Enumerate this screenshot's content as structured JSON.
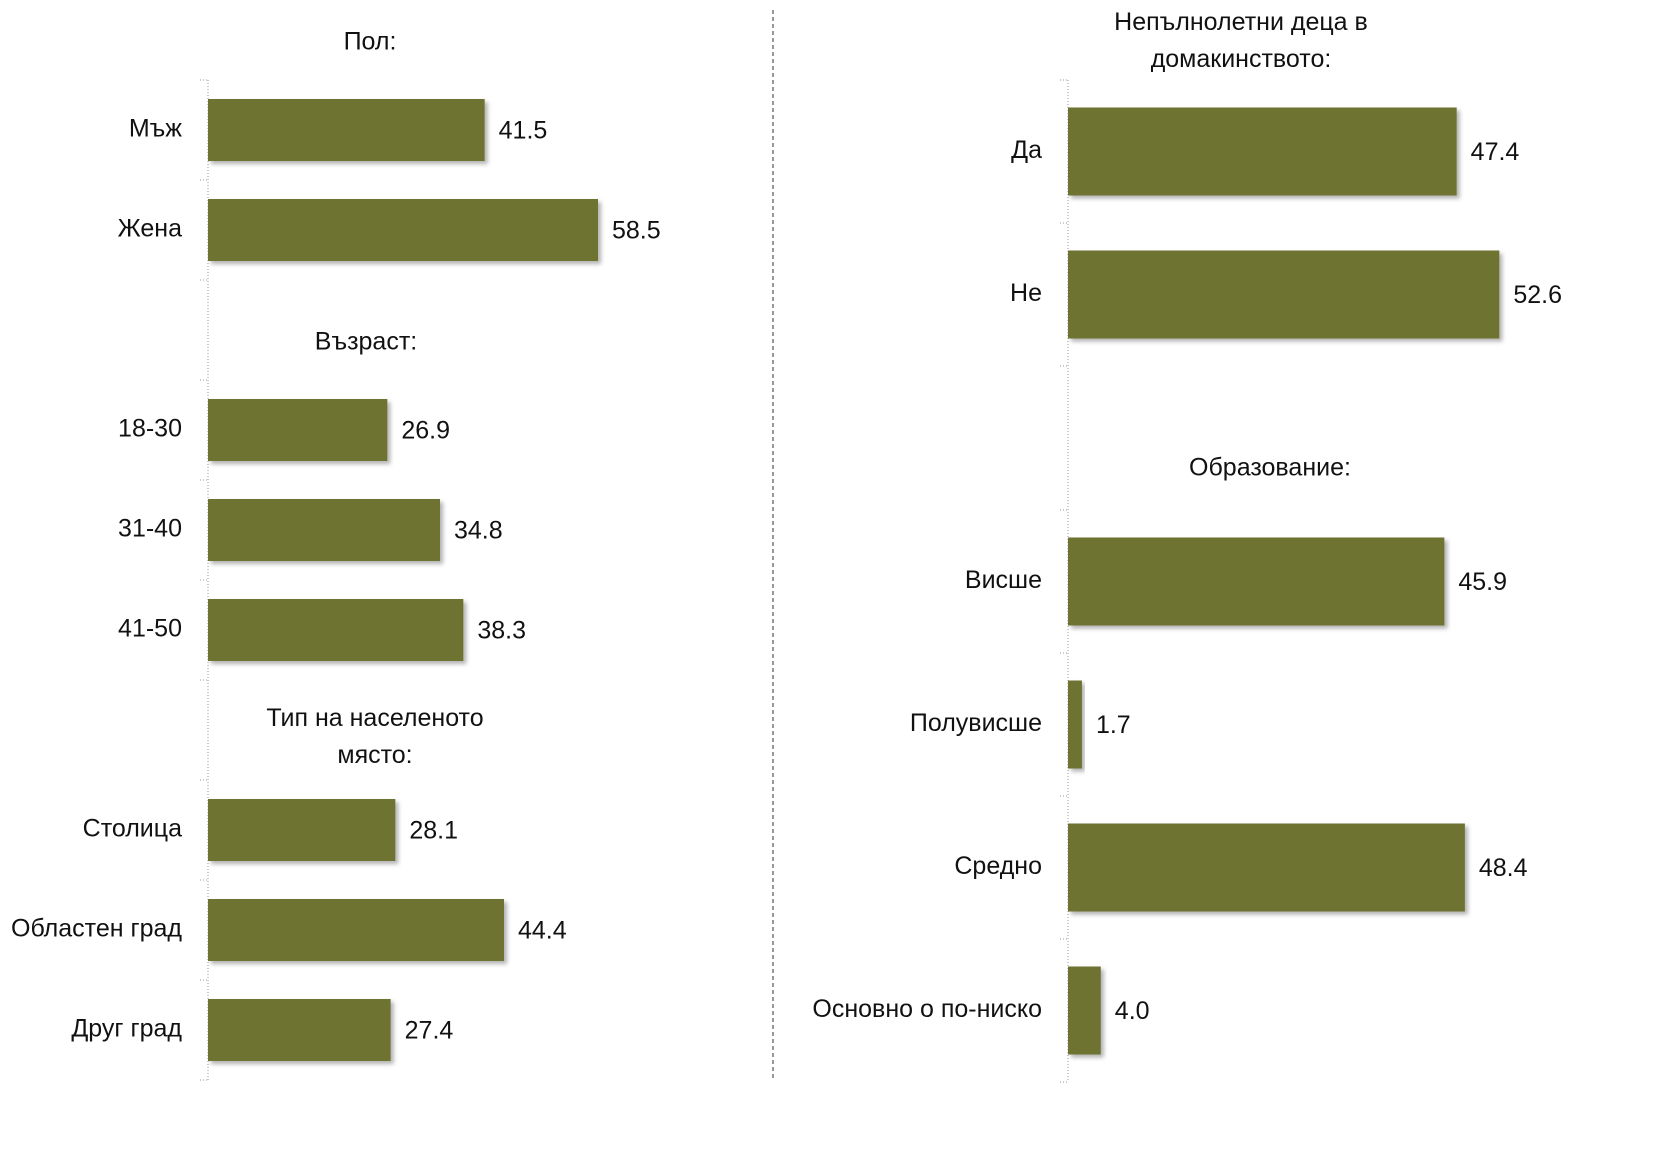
{
  "chart_data": [
    {
      "type": "bar",
      "orientation": "horizontal",
      "title": "Пол:",
      "categories": [
        "Мъж",
        "Жена"
      ],
      "values": [
        41.5,
        58.5
      ],
      "color": "#6e7333",
      "xlim": [
        0,
        60
      ]
    },
    {
      "type": "bar",
      "orientation": "horizontal",
      "title": "Възраст:",
      "categories": [
        "18-30",
        "31-40",
        "41-50"
      ],
      "values": [
        26.9,
        34.8,
        38.3
      ],
      "color": "#6e7333",
      "xlim": [
        0,
        60
      ]
    },
    {
      "type": "bar",
      "orientation": "horizontal",
      "title": "Тип на населеното място:",
      "categories": [
        "Столица",
        "Областен град",
        "Друг град"
      ],
      "values": [
        28.1,
        44.4,
        27.4
      ],
      "color": "#6e7333",
      "xlim": [
        0,
        60
      ]
    },
    {
      "type": "bar",
      "orientation": "horizontal",
      "title": "Непълнолетни деца в домакинството:",
      "categories": [
        "Да",
        "Не"
      ],
      "values": [
        47.4,
        52.6
      ],
      "color": "#6e7333",
      "xlim": [
        0,
        60
      ]
    },
    {
      "type": "bar",
      "orientation": "horizontal",
      "title": "Образование:",
      "categories": [
        "Висше",
        "Полувисше",
        "Средно",
        "Основно о по-ниско"
      ],
      "values": [
        45.9,
        1.7,
        48.4,
        4.0
      ],
      "value_labels": [
        "45.9",
        "1.7",
        "48.4",
        "4.0"
      ],
      "color": "#6e7333",
      "xlim": [
        0,
        60
      ]
    }
  ]
}
